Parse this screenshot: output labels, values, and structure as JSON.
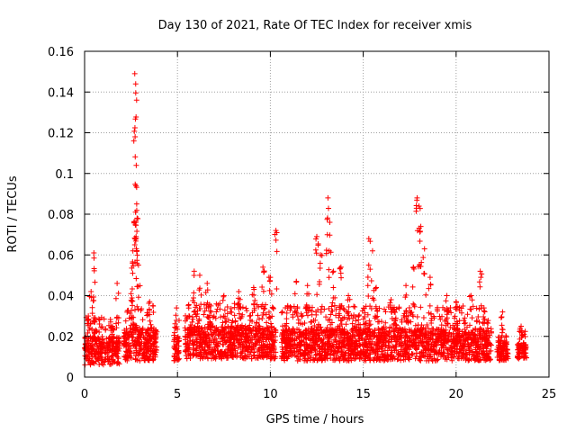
{
  "chart_data": {
    "type": "scatter",
    "title": "Day 130 of 2021, Rate Of TEC Index for receiver xmis",
    "xlabel": "GPS time / hours",
    "ylabel": "ROTI / TECUs",
    "xlim": [
      0,
      25
    ],
    "ylim": [
      0,
      0.16
    ],
    "x_ticks": [
      0,
      5,
      10,
      15,
      20,
      25
    ],
    "x_tick_labels": [
      "0",
      "5",
      "10",
      "15",
      "20",
      "25"
    ],
    "y_ticks": [
      0,
      0.02,
      0.04,
      0.06,
      0.08,
      0.1,
      0.12,
      0.14,
      0.16
    ],
    "y_tick_labels": [
      "0",
      "0.02",
      "0.04",
      "0.06",
      "0.08",
      "0.1",
      "0.12",
      "0.14",
      "0.16"
    ],
    "grid": true,
    "marker": "plus",
    "marker_color": "#ff0000",
    "segments": [
      {
        "start": 0.0,
        "end": 1.9,
        "base": 0.013,
        "spread": 0.007,
        "peaks": [
          [
            0.2,
            0.03
          ],
          [
            0.35,
            0.042
          ],
          [
            0.5,
            0.061
          ],
          [
            1.5,
            0.025
          ],
          [
            1.75,
            0.046
          ]
        ]
      },
      {
        "start": 2.1,
        "end": 3.9,
        "base": 0.016,
        "spread": 0.008,
        "peaks": [
          [
            2.7,
            0.149
          ],
          [
            2.75,
            0.144
          ],
          [
            2.8,
            0.136
          ],
          [
            2.72,
            0.118
          ],
          [
            2.78,
            0.104
          ],
          [
            2.76,
            0.094
          ],
          [
            2.74,
            0.081
          ],
          [
            2.77,
            0.069
          ],
          [
            2.6,
            0.062
          ],
          [
            2.9,
            0.055
          ],
          [
            3.5,
            0.037
          ],
          [
            2.5,
            0.041
          ]
        ]
      },
      {
        "start": 4.8,
        "end": 5.1,
        "base": 0.014,
        "spread": 0.006,
        "peaks": [
          [
            4.95,
            0.034
          ]
        ]
      },
      {
        "start": 5.4,
        "end": 10.3,
        "base": 0.017,
        "spread": 0.008,
        "peaks": [
          [
            5.9,
            0.052
          ],
          [
            6.2,
            0.05
          ],
          [
            6.6,
            0.046
          ],
          [
            7.5,
            0.04
          ],
          [
            8.3,
            0.042
          ],
          [
            9.1,
            0.044
          ],
          [
            9.6,
            0.054
          ],
          [
            10.0,
            0.049
          ],
          [
            10.3,
            0.072
          ],
          [
            6.8,
            0.035
          ]
        ]
      },
      {
        "start": 10.6,
        "end": 21.9,
        "base": 0.016,
        "spread": 0.008,
        "peaks": [
          [
            11.4,
            0.047
          ],
          [
            12.0,
            0.045
          ],
          [
            12.5,
            0.069
          ],
          [
            12.7,
            0.06
          ],
          [
            13.1,
            0.088
          ],
          [
            13.2,
            0.076
          ],
          [
            13.4,
            0.052
          ],
          [
            13.8,
            0.054
          ],
          [
            14.2,
            0.04
          ],
          [
            15.3,
            0.068
          ],
          [
            15.5,
            0.062
          ],
          [
            15.7,
            0.044
          ],
          [
            16.5,
            0.038
          ],
          [
            17.3,
            0.045
          ],
          [
            17.7,
            0.054
          ],
          [
            17.9,
            0.088
          ],
          [
            18.0,
            0.084
          ],
          [
            18.1,
            0.074
          ],
          [
            18.3,
            0.063
          ],
          [
            18.6,
            0.049
          ],
          [
            19.5,
            0.04
          ],
          [
            20.0,
            0.037
          ],
          [
            20.8,
            0.04
          ],
          [
            21.3,
            0.052
          ],
          [
            21.5,
            0.034
          ]
        ]
      },
      {
        "start": 22.2,
        "end": 22.8,
        "base": 0.013,
        "spread": 0.005,
        "peaks": [
          [
            22.5,
            0.032
          ]
        ]
      },
      {
        "start": 23.3,
        "end": 23.8,
        "base": 0.013,
        "spread": 0.004,
        "peaks": [
          [
            23.5,
            0.025
          ]
        ]
      }
    ]
  }
}
